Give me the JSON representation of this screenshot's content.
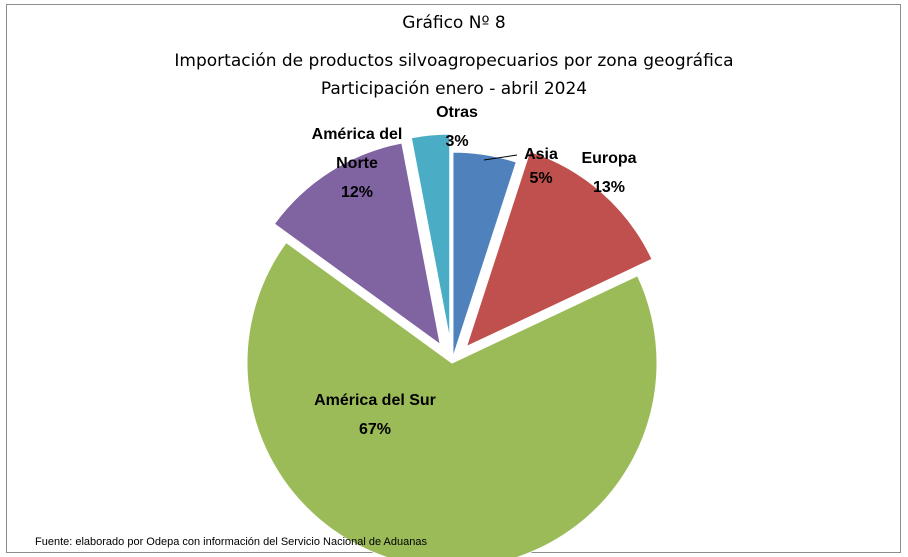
{
  "chart_data": {
    "type": "pie",
    "title_line1": "Gráfico  Nº 8",
    "title_line2": "Importación de productos silvoagropecuarios por zona geográfica",
    "title_line3": "Participación enero - abril 2024",
    "slices": [
      {
        "name": "Asia",
        "value": 5,
        "label": "5%",
        "color": "#4f81bd"
      },
      {
        "name": "Europa",
        "value": 13,
        "label": "13%",
        "color": "#c0504d"
      },
      {
        "name": "América del Sur",
        "value": 67,
        "label": "67%",
        "color": "#9bbb59"
      },
      {
        "name": "América del Norte",
        "value": 12,
        "label": "12%",
        "color": "#8064a2"
      },
      {
        "name": "Otras",
        "value": 3,
        "label": "3%",
        "color": "#4bacc6"
      }
    ],
    "legend": "none",
    "exploded": true
  },
  "footer": {
    "source": "Fuente:  elaborado por Odepa con información del Servicio Nacional de Aduanas"
  }
}
